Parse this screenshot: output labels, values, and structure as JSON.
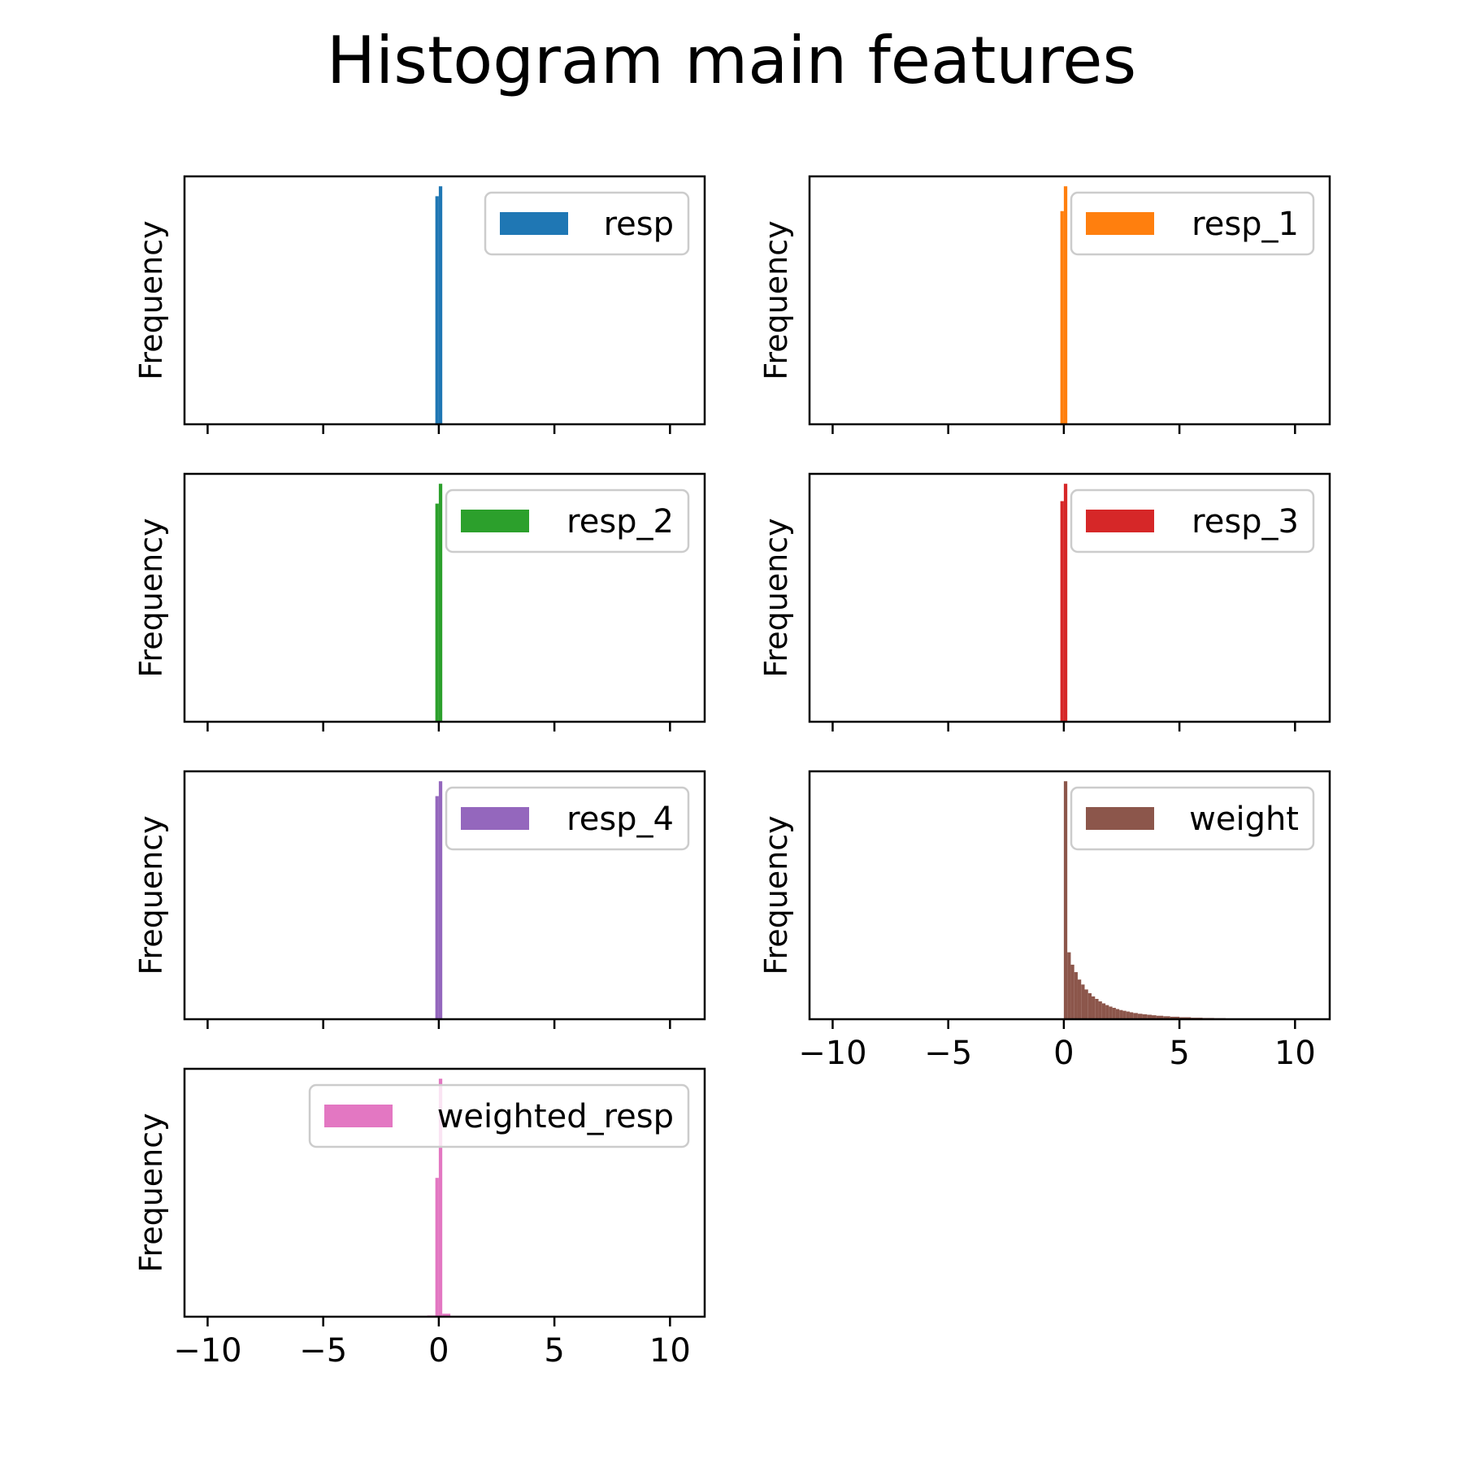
{
  "title": "Histogram main features",
  "chart_data": [
    {
      "type": "bar",
      "name": "resp",
      "color": "#1f77b4",
      "ylabel": "Frequency",
      "xlim": [
        -11,
        11.5
      ],
      "xticks": [
        -10,
        -5,
        0,
        5,
        10
      ],
      "show_xtick_labels": false,
      "bins": [
        {
          "x0": -0.15,
          "x1": 0.0,
          "value": 0.92
        },
        {
          "x0": 0.0,
          "x1": 0.15,
          "value": 0.96
        }
      ]
    },
    {
      "type": "bar",
      "name": "resp_1",
      "color": "#ff7f0e",
      "ylabel": "Frequency",
      "xlim": [
        -11,
        11.5
      ],
      "xticks": [
        -10,
        -5,
        0,
        5,
        10
      ],
      "show_xtick_labels": false,
      "bins": [
        {
          "x0": -0.15,
          "x1": 0.0,
          "value": 0.86
        },
        {
          "x0": 0.0,
          "x1": 0.15,
          "value": 0.96
        }
      ]
    },
    {
      "type": "bar",
      "name": "resp_2",
      "color": "#2ca02c",
      "ylabel": "Frequency",
      "xlim": [
        -11,
        11.5
      ],
      "xticks": [
        -10,
        -5,
        0,
        5,
        10
      ],
      "show_xtick_labels": false,
      "bins": [
        {
          "x0": -0.15,
          "x1": 0.0,
          "value": 0.88
        },
        {
          "x0": 0.0,
          "x1": 0.15,
          "value": 0.96
        }
      ]
    },
    {
      "type": "bar",
      "name": "resp_3",
      "color": "#d62728",
      "ylabel": "Frequency",
      "xlim": [
        -11,
        11.5
      ],
      "xticks": [
        -10,
        -5,
        0,
        5,
        10
      ],
      "show_xtick_labels": false,
      "bins": [
        {
          "x0": -0.15,
          "x1": 0.0,
          "value": 0.89
        },
        {
          "x0": 0.0,
          "x1": 0.15,
          "value": 0.96
        }
      ]
    },
    {
      "type": "bar",
      "name": "resp_4",
      "color": "#9467bd",
      "ylabel": "Frequency",
      "xlim": [
        -11,
        11.5
      ],
      "xticks": [
        -10,
        -5,
        0,
        5,
        10
      ],
      "show_xtick_labels": false,
      "bins": [
        {
          "x0": -0.15,
          "x1": 0.0,
          "value": 0.9
        },
        {
          "x0": 0.0,
          "x1": 0.15,
          "value": 0.96
        }
      ]
    },
    {
      "type": "bar",
      "name": "weight",
      "color": "#8c564b",
      "ylabel": "Frequency",
      "xlim": [
        -11,
        11.5
      ],
      "xticks": [
        -10,
        -5,
        0,
        5,
        10
      ],
      "xtick_labels": [
        "−10",
        "−5",
        "0",
        "5",
        "10"
      ],
      "show_xtick_labels": true,
      "bins": [
        {
          "x0": 0.0,
          "x1": 0.15,
          "value": 0.96
        },
        {
          "x0": 0.15,
          "x1": 0.3,
          "value": 0.27
        },
        {
          "x0": 0.3,
          "x1": 0.45,
          "value": 0.22
        },
        {
          "x0": 0.45,
          "x1": 0.6,
          "value": 0.19
        },
        {
          "x0": 0.6,
          "x1": 0.75,
          "value": 0.16
        },
        {
          "x0": 0.75,
          "x1": 0.9,
          "value": 0.14
        },
        {
          "x0": 0.9,
          "x1": 1.05,
          "value": 0.12
        },
        {
          "x0": 1.05,
          "x1": 1.2,
          "value": 0.105
        },
        {
          "x0": 1.2,
          "x1": 1.35,
          "value": 0.092
        },
        {
          "x0": 1.35,
          "x1": 1.5,
          "value": 0.082
        },
        {
          "x0": 1.5,
          "x1": 1.65,
          "value": 0.072
        },
        {
          "x0": 1.65,
          "x1": 1.8,
          "value": 0.064
        },
        {
          "x0": 1.8,
          "x1": 1.95,
          "value": 0.057
        },
        {
          "x0": 1.95,
          "x1": 2.1,
          "value": 0.051
        },
        {
          "x0": 2.1,
          "x1": 2.25,
          "value": 0.046
        },
        {
          "x0": 2.25,
          "x1": 2.4,
          "value": 0.041
        },
        {
          "x0": 2.4,
          "x1": 2.55,
          "value": 0.037
        },
        {
          "x0": 2.55,
          "x1": 2.7,
          "value": 0.034
        },
        {
          "x0": 2.7,
          "x1": 2.85,
          "value": 0.031
        },
        {
          "x0": 2.85,
          "x1": 3.0,
          "value": 0.028
        },
        {
          "x0": 3.0,
          "x1": 3.2,
          "value": 0.025
        },
        {
          "x0": 3.2,
          "x1": 3.4,
          "value": 0.022
        },
        {
          "x0": 3.4,
          "x1": 3.6,
          "value": 0.02
        },
        {
          "x0": 3.6,
          "x1": 3.8,
          "value": 0.018
        },
        {
          "x0": 3.8,
          "x1": 4.0,
          "value": 0.016
        },
        {
          "x0": 4.0,
          "x1": 4.3,
          "value": 0.014
        },
        {
          "x0": 4.3,
          "x1": 4.6,
          "value": 0.012
        },
        {
          "x0": 4.6,
          "x1": 5.0,
          "value": 0.01
        },
        {
          "x0": 5.0,
          "x1": 5.5,
          "value": 0.008
        },
        {
          "x0": 5.5,
          "x1": 6.0,
          "value": 0.006
        },
        {
          "x0": 6.0,
          "x1": 6.5,
          "value": 0.005
        },
        {
          "x0": 6.5,
          "x1": 7.0,
          "value": 0.004
        },
        {
          "x0": 7.0,
          "x1": 7.4,
          "value": 0.003
        }
      ]
    },
    {
      "type": "bar",
      "name": "weighted_resp",
      "color": "#e377c2",
      "ylabel": "Frequency",
      "xlim": [
        -11,
        11.5
      ],
      "xticks": [
        -10,
        -5,
        0,
        5,
        10
      ],
      "xtick_labels": [
        "−10",
        "−5",
        "0",
        "5",
        "10"
      ],
      "show_xtick_labels": true,
      "bins": [
        {
          "x0": -0.5,
          "x1": -0.15,
          "value": 0.005
        },
        {
          "x0": -0.15,
          "x1": 0.0,
          "value": 0.56
        },
        {
          "x0": 0.0,
          "x1": 0.15,
          "value": 0.96
        },
        {
          "x0": 0.15,
          "x1": 0.5,
          "value": 0.012
        }
      ]
    }
  ]
}
